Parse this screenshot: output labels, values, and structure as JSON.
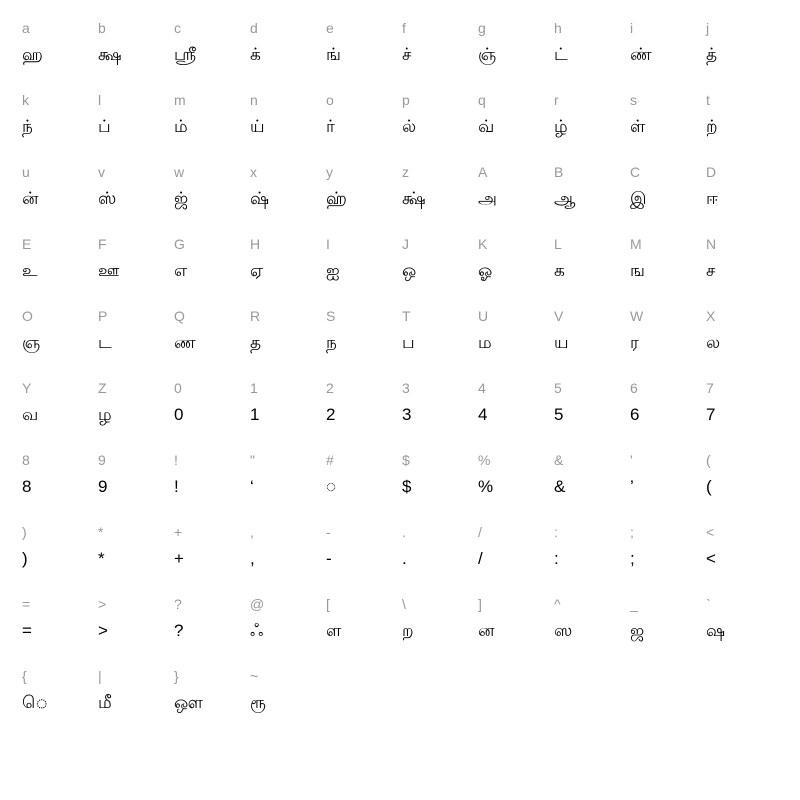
{
  "style": {
    "columns": 10,
    "key_color": "#999999",
    "glyph_color": "#000000",
    "background_color": "#ffffff",
    "key_fontsize": 14,
    "glyph_fontsize": 17,
    "font_family": "Arial, Helvetica, sans-serif"
  },
  "cells": [
    {
      "key": "a",
      "glyph": "ஹ"
    },
    {
      "key": "b",
      "glyph": "க்ஷ"
    },
    {
      "key": "c",
      "glyph": "ஸ்ரீ"
    },
    {
      "key": "d",
      "glyph": "க்"
    },
    {
      "key": "e",
      "glyph": "ங்"
    },
    {
      "key": "f",
      "glyph": "ச்"
    },
    {
      "key": "g",
      "glyph": "ஞ்"
    },
    {
      "key": "h",
      "glyph": "ட்"
    },
    {
      "key": "i",
      "glyph": "ண்"
    },
    {
      "key": "j",
      "glyph": "த்"
    },
    {
      "key": "k",
      "glyph": "ந்"
    },
    {
      "key": "l",
      "glyph": "ப்"
    },
    {
      "key": "m",
      "glyph": "ம்"
    },
    {
      "key": "n",
      "glyph": "ய்"
    },
    {
      "key": "o",
      "glyph": "ர்"
    },
    {
      "key": "p",
      "glyph": "ல்"
    },
    {
      "key": "q",
      "glyph": "வ்"
    },
    {
      "key": "r",
      "glyph": "ழ்"
    },
    {
      "key": "s",
      "glyph": "ள்"
    },
    {
      "key": "t",
      "glyph": "ற்"
    },
    {
      "key": "u",
      "glyph": "ன்"
    },
    {
      "key": "v",
      "glyph": "ஸ்"
    },
    {
      "key": "w",
      "glyph": "ஜ்"
    },
    {
      "key": "x",
      "glyph": "ஷ்"
    },
    {
      "key": "y",
      "glyph": "ஹ்"
    },
    {
      "key": "z",
      "glyph": "க்ஷ்"
    },
    {
      "key": "A",
      "glyph": "அ"
    },
    {
      "key": "B",
      "glyph": "ஆ"
    },
    {
      "key": "C",
      "glyph": "இ"
    },
    {
      "key": "D",
      "glyph": "ஈ"
    },
    {
      "key": "E",
      "glyph": "உ"
    },
    {
      "key": "F",
      "glyph": "ஊ"
    },
    {
      "key": "G",
      "glyph": "எ"
    },
    {
      "key": "H",
      "glyph": "ஏ"
    },
    {
      "key": "I",
      "glyph": "ஐ"
    },
    {
      "key": "J",
      "glyph": "ஒ"
    },
    {
      "key": "K",
      "glyph": "ஓ"
    },
    {
      "key": "L",
      "glyph": "க"
    },
    {
      "key": "M",
      "glyph": "ங"
    },
    {
      "key": "N",
      "glyph": "ச"
    },
    {
      "key": "O",
      "glyph": "ஞ"
    },
    {
      "key": "P",
      "glyph": "ட"
    },
    {
      "key": "Q",
      "glyph": "ண"
    },
    {
      "key": "R",
      "glyph": "த"
    },
    {
      "key": "S",
      "glyph": "ந"
    },
    {
      "key": "T",
      "glyph": "ப"
    },
    {
      "key": "U",
      "glyph": "ம"
    },
    {
      "key": "V",
      "glyph": "ய"
    },
    {
      "key": "W",
      "glyph": "ர"
    },
    {
      "key": "X",
      "glyph": "ல"
    },
    {
      "key": "Y",
      "glyph": "வ"
    },
    {
      "key": "Z",
      "glyph": "ழ"
    },
    {
      "key": "0",
      "glyph": "0"
    },
    {
      "key": "1",
      "glyph": "1"
    },
    {
      "key": "2",
      "glyph": "2"
    },
    {
      "key": "3",
      "glyph": "3"
    },
    {
      "key": "4",
      "glyph": "4"
    },
    {
      "key": "5",
      "glyph": "5"
    },
    {
      "key": "6",
      "glyph": "6"
    },
    {
      "key": "7",
      "glyph": "7"
    },
    {
      "key": "8",
      "glyph": "8"
    },
    {
      "key": "9",
      "glyph": "9"
    },
    {
      "key": "!",
      "glyph": "!"
    },
    {
      "key": "\"",
      "glyph": "‘"
    },
    {
      "key": "#",
      "glyph": "◌"
    },
    {
      "key": "$",
      "glyph": "$"
    },
    {
      "key": "%",
      "glyph": "%"
    },
    {
      "key": "&",
      "glyph": "&"
    },
    {
      "key": "'",
      "glyph": "’"
    },
    {
      "key": "(",
      "glyph": "("
    },
    {
      "key": ")",
      "glyph": ")"
    },
    {
      "key": "*",
      "glyph": "*"
    },
    {
      "key": "+",
      "glyph": "+"
    },
    {
      "key": ",",
      "glyph": ","
    },
    {
      "key": "-",
      "glyph": "-"
    },
    {
      "key": ".",
      "glyph": "."
    },
    {
      "key": "/",
      "glyph": "/"
    },
    {
      "key": ":",
      "glyph": ":"
    },
    {
      "key": ";",
      "glyph": ";"
    },
    {
      "key": "<",
      "glyph": "<"
    },
    {
      "key": "=",
      "glyph": "="
    },
    {
      "key": ">",
      "glyph": ">"
    },
    {
      "key": "?",
      "glyph": "?"
    },
    {
      "key": "@",
      "glyph": "ஃ"
    },
    {
      "key": "[",
      "glyph": "ள"
    },
    {
      "key": "\\",
      "glyph": "ற"
    },
    {
      "key": "]",
      "glyph": "ன"
    },
    {
      "key": "^",
      "glyph": "ஸ"
    },
    {
      "key": "_",
      "glyph": "ஜ"
    },
    {
      "key": "`",
      "glyph": "ஷ"
    },
    {
      "key": "{",
      "glyph": "ெ"
    },
    {
      "key": "|",
      "glyph": "மீ"
    },
    {
      "key": "}",
      "glyph": "ஔ"
    },
    {
      "key": "~",
      "glyph": "ரூ"
    }
  ]
}
